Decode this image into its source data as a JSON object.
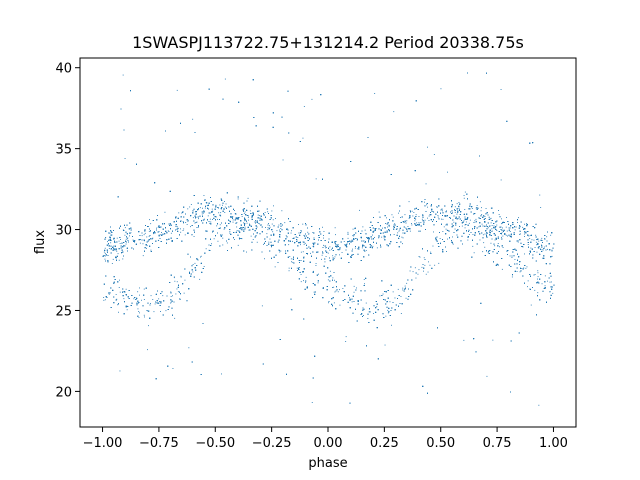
{
  "chart_data": {
    "type": "scatter",
    "title": "1SWASPJ113722.75+131214.2 Period 20338.75s",
    "xlabel": "phase",
    "ylabel": "flux",
    "xlim": [
      -1.1,
      1.1
    ],
    "ylim": [
      17.8,
      40.6
    ],
    "xticks": [
      -1.0,
      -0.75,
      -0.5,
      -0.25,
      0.0,
      0.25,
      0.5,
      0.75,
      1.0
    ],
    "xtick_labels": [
      "−1.00",
      "−0.75",
      "−0.50",
      "−0.25",
      "0.00",
      "0.25",
      "0.50",
      "0.75",
      "1.00"
    ],
    "yticks": [
      20,
      25,
      30,
      35,
      40
    ],
    "ytick_labels": [
      "20",
      "25",
      "30",
      "35",
      "40"
    ],
    "grid": false,
    "legend": "none",
    "marker_color": "#1f77b4",
    "series": [
      {
        "values_note": "",
        "trend": {
          "phase": [
            -1.0,
            -0.9,
            -0.8,
            -0.7,
            -0.6,
            -0.5,
            -0.4,
            -0.3,
            -0.2,
            -0.1,
            0.0,
            0.1,
            0.2,
            0.3,
            0.4,
            0.5,
            0.6,
            0.7,
            0.8,
            0.9,
            1.0
          ],
          "upper_flux": [
            29.0,
            29.2,
            29.6,
            30.2,
            30.8,
            31.0,
            30.9,
            30.6,
            30.0,
            29.3,
            28.8,
            29.2,
            29.6,
            30.2,
            30.8,
            31.0,
            30.9,
            30.6,
            30.0,
            29.3,
            28.8
          ],
          "lower_flux": [
            26.5,
            25.8,
            25.3,
            25.6,
            27.5,
            29.5,
            30.0,
            29.5,
            28.5,
            27.0,
            26.5,
            25.8,
            25.3,
            25.6,
            27.5,
            29.5,
            30.0,
            29.5,
            28.5,
            27.0,
            26.5
          ]
        }
      }
    ]
  }
}
